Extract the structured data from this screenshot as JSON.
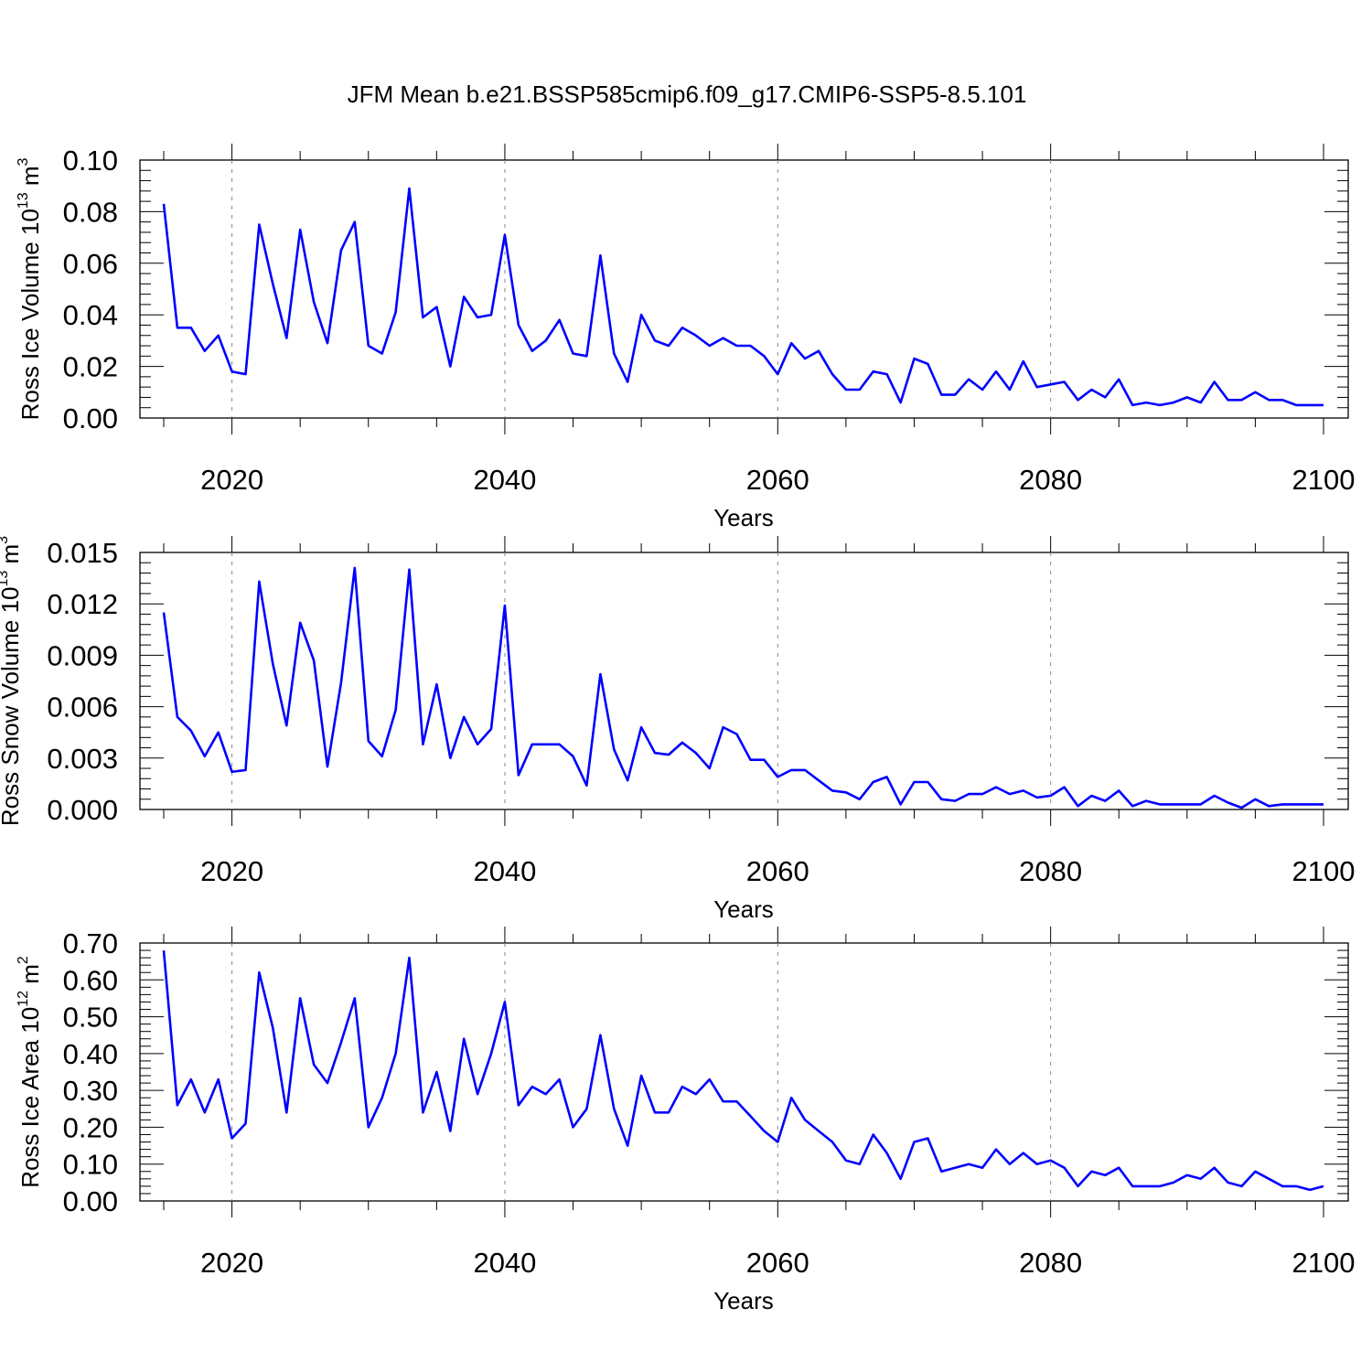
{
  "title": "JFM Mean b.e21.BSSP585cmip6.f09_g17.CMIP6-SSP5-8.5.101",
  "line_color": "#0000ff",
  "chart_data": [
    {
      "type": "line",
      "ylabel": "Ross Ice Volume",
      "ylabel_unit_base": "10",
      "ylabel_unit_exp": "13",
      "ylabel_unit_tail": "m",
      "ylabel_unit_tail_exp": "3",
      "xlabel": "Years",
      "xlim": [
        2015,
        2100
      ],
      "ylim": [
        0,
        0.1
      ],
      "xticks": [
        "2020",
        "2040",
        "2060",
        "2080",
        "2100"
      ],
      "yticks": [
        "0.00",
        "0.02",
        "0.04",
        "0.06",
        "0.08",
        "0.10"
      ],
      "grid": "vertical-dashed",
      "series": [
        {
          "x": [
            2015,
            2016,
            2017,
            2018,
            2019,
            2020,
            2021,
            2022,
            2023,
            2024,
            2025,
            2026,
            2027,
            2028,
            2029,
            2030,
            2031,
            2032,
            2033,
            2034,
            2035,
            2036,
            2037,
            2038,
            2039,
            2040,
            2041,
            2042,
            2043,
            2044,
            2045,
            2046,
            2047,
            2048,
            2049,
            2050,
            2051,
            2052,
            2053,
            2054,
            2055,
            2056,
            2057,
            2058,
            2059,
            2060,
            2061,
            2062,
            2063,
            2064,
            2065,
            2066,
            2067,
            2068,
            2069,
            2070,
            2071,
            2072,
            2073,
            2074,
            2075,
            2076,
            2077,
            2078,
            2079,
            2080,
            2081,
            2082,
            2083,
            2084,
            2085,
            2086,
            2087,
            2088,
            2089,
            2090,
            2091,
            2092,
            2093,
            2094,
            2095,
            2096,
            2097,
            2098,
            2099,
            2100
          ],
          "y": [
            0.083,
            0.035,
            0.035,
            0.026,
            0.032,
            0.018,
            0.017,
            0.075,
            0.052,
            0.031,
            0.073,
            0.045,
            0.029,
            0.065,
            0.076,
            0.028,
            0.025,
            0.041,
            0.089,
            0.039,
            0.043,
            0.02,
            0.047,
            0.039,
            0.04,
            0.071,
            0.036,
            0.026,
            0.03,
            0.038,
            0.025,
            0.024,
            0.063,
            0.025,
            0.014,
            0.04,
            0.03,
            0.028,
            0.035,
            0.032,
            0.028,
            0.031,
            0.028,
            0.028,
            0.024,
            0.017,
            0.029,
            0.023,
            0.026,
            0.017,
            0.011,
            0.011,
            0.018,
            0.017,
            0.006,
            0.023,
            0.021,
            0.009,
            0.009,
            0.015,
            0.011,
            0.018,
            0.011,
            0.022,
            0.012,
            0.013,
            0.014,
            0.007,
            0.011,
            0.008,
            0.015,
            0.005,
            0.006,
            0.005,
            0.006,
            0.008,
            0.006,
            0.014,
            0.007,
            0.007,
            0.01,
            0.007,
            0.007,
            0.005,
            0.005,
            0.005
          ]
        }
      ]
    },
    {
      "type": "line",
      "ylabel": "Ross Snow Volume",
      "ylabel_unit_base": "10",
      "ylabel_unit_exp": "13",
      "ylabel_unit_tail": "m",
      "ylabel_unit_tail_exp": "3",
      "xlabel": "Years",
      "xlim": [
        2015,
        2100
      ],
      "ylim": [
        0,
        0.015
      ],
      "xticks": [
        "2020",
        "2040",
        "2060",
        "2080",
        "2100"
      ],
      "yticks": [
        "0.000",
        "0.003",
        "0.006",
        "0.009",
        "0.012",
        "0.015"
      ],
      "grid": "vertical-dashed",
      "series": [
        {
          "x": [
            2015,
            2016,
            2017,
            2018,
            2019,
            2020,
            2021,
            2022,
            2023,
            2024,
            2025,
            2026,
            2027,
            2028,
            2029,
            2030,
            2031,
            2032,
            2033,
            2034,
            2035,
            2036,
            2037,
            2038,
            2039,
            2040,
            2041,
            2042,
            2043,
            2044,
            2045,
            2046,
            2047,
            2048,
            2049,
            2050,
            2051,
            2052,
            2053,
            2054,
            2055,
            2056,
            2057,
            2058,
            2059,
            2060,
            2061,
            2062,
            2063,
            2064,
            2065,
            2066,
            2067,
            2068,
            2069,
            2070,
            2071,
            2072,
            2073,
            2074,
            2075,
            2076,
            2077,
            2078,
            2079,
            2080,
            2081,
            2082,
            2083,
            2084,
            2085,
            2086,
            2087,
            2088,
            2089,
            2090,
            2091,
            2092,
            2093,
            2094,
            2095,
            2096,
            2097,
            2098,
            2099,
            2100
          ],
          "y": [
            0.0115,
            0.0054,
            0.0046,
            0.0031,
            0.0045,
            0.0022,
            0.0023,
            0.0133,
            0.0085,
            0.0049,
            0.0109,
            0.0087,
            0.0025,
            0.0074,
            0.0141,
            0.004,
            0.0031,
            0.0058,
            0.014,
            0.0038,
            0.0073,
            0.003,
            0.0054,
            0.0038,
            0.0047,
            0.0119,
            0.002,
            0.0038,
            0.0038,
            0.0038,
            0.0031,
            0.0014,
            0.0079,
            0.0035,
            0.0017,
            0.0048,
            0.0033,
            0.0032,
            0.0039,
            0.0033,
            0.0024,
            0.0048,
            0.0044,
            0.0029,
            0.0029,
            0.0019,
            0.0023,
            0.0023,
            0.0017,
            0.0011,
            0.001,
            0.0006,
            0.0016,
            0.0019,
            0.0003,
            0.0016,
            0.0016,
            0.0006,
            0.0005,
            0.0009,
            0.0009,
            0.0013,
            0.0009,
            0.0011,
            0.0007,
            0.0008,
            0.0013,
            0.0002,
            0.0008,
            0.0005,
            0.0011,
            0.0002,
            0.0005,
            0.0003,
            0.0003,
            0.0003,
            0.0003,
            0.0008,
            0.0004,
            0.0001,
            0.0006,
            0.0002,
            0.0003,
            0.0003,
            0.0003,
            0.0003
          ]
        }
      ]
    },
    {
      "type": "line",
      "ylabel": "Ross Ice Area",
      "ylabel_unit_base": "10",
      "ylabel_unit_exp": "12",
      "ylabel_unit_tail": "m",
      "ylabel_unit_tail_exp": "2",
      "xlabel": "Years",
      "xlim": [
        2015,
        2100
      ],
      "ylim": [
        0,
        0.7
      ],
      "xticks": [
        "2020",
        "2040",
        "2060",
        "2080",
        "2100"
      ],
      "yticks": [
        "0.00",
        "0.10",
        "0.20",
        "0.30",
        "0.40",
        "0.50",
        "0.60",
        "0.70"
      ],
      "grid": "vertical-dashed",
      "series": [
        {
          "x": [
            2015,
            2016,
            2017,
            2018,
            2019,
            2020,
            2021,
            2022,
            2023,
            2024,
            2025,
            2026,
            2027,
            2028,
            2029,
            2030,
            2031,
            2032,
            2033,
            2034,
            2035,
            2036,
            2037,
            2038,
            2039,
            2040,
            2041,
            2042,
            2043,
            2044,
            2045,
            2046,
            2047,
            2048,
            2049,
            2050,
            2051,
            2052,
            2053,
            2054,
            2055,
            2056,
            2057,
            2058,
            2059,
            2060,
            2061,
            2062,
            2063,
            2064,
            2065,
            2066,
            2067,
            2068,
            2069,
            2070,
            2071,
            2072,
            2073,
            2074,
            2075,
            2076,
            2077,
            2078,
            2079,
            2080,
            2081,
            2082,
            2083,
            2084,
            2085,
            2086,
            2087,
            2088,
            2089,
            2090,
            2091,
            2092,
            2093,
            2094,
            2095,
            2096,
            2097,
            2098,
            2099,
            2100
          ],
          "y": [
            0.68,
            0.26,
            0.33,
            0.24,
            0.33,
            0.17,
            0.21,
            0.62,
            0.47,
            0.24,
            0.55,
            0.37,
            0.32,
            0.43,
            0.55,
            0.2,
            0.28,
            0.4,
            0.66,
            0.24,
            0.35,
            0.19,
            0.44,
            0.29,
            0.4,
            0.54,
            0.26,
            0.31,
            0.29,
            0.33,
            0.2,
            0.25,
            0.45,
            0.25,
            0.15,
            0.34,
            0.24,
            0.24,
            0.31,
            0.29,
            0.33,
            0.27,
            0.27,
            0.23,
            0.19,
            0.16,
            0.28,
            0.22,
            0.19,
            0.16,
            0.11,
            0.1,
            0.18,
            0.13,
            0.06,
            0.16,
            0.17,
            0.08,
            0.09,
            0.1,
            0.09,
            0.14,
            0.1,
            0.13,
            0.1,
            0.11,
            0.09,
            0.04,
            0.08,
            0.07,
            0.09,
            0.04,
            0.04,
            0.04,
            0.05,
            0.07,
            0.06,
            0.09,
            0.05,
            0.04,
            0.08,
            0.06,
            0.04,
            0.04,
            0.03,
            0.04
          ]
        }
      ]
    }
  ]
}
